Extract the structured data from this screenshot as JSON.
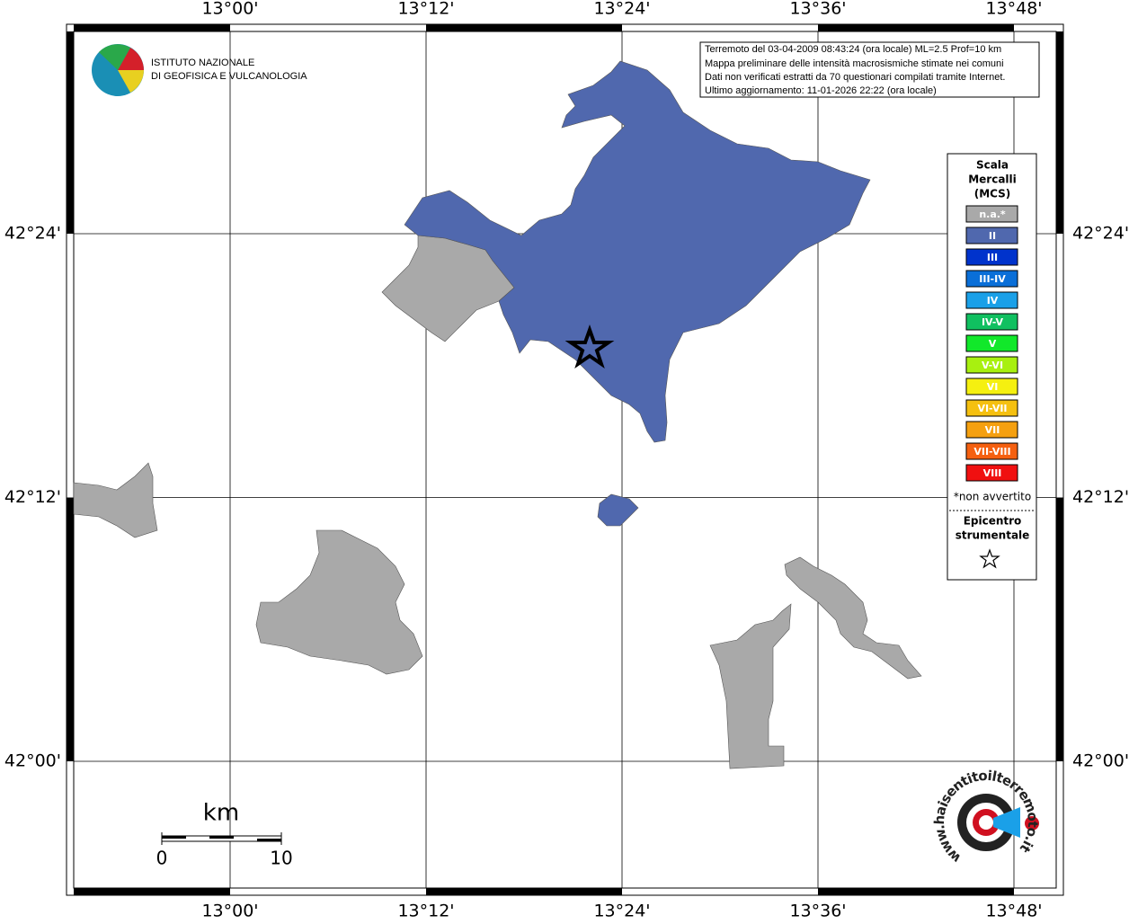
{
  "logo": {
    "lines": [
      "ISTITUTO NAZIONALE",
      "DI GEOFISICA E VULCANOLOGIA"
    ]
  },
  "info": {
    "lines": [
      "Terremoto del 03-04-2009 08:43:24 (ora locale) ML=2.5 Prof=10 km",
      "Mappa preliminare delle intensità macrosismiche stimate nei comuni",
      "Dati non verificati estratti da 70 questionari compilati tramite Internet.",
      "Ultimo aggiornamento: 11-01-2026 22:22 (ora locale)"
    ]
  },
  "axes": {
    "lon_ticks": [
      "13°00'",
      "13°12'",
      "13°24'",
      "13°36'",
      "13°48'"
    ],
    "lat_ticks": [
      "42°24'",
      "42°12'",
      "42°00'"
    ]
  },
  "legend": {
    "title": [
      "Scala",
      "Mercalli",
      "(MCS)"
    ],
    "items": [
      {
        "label": "n.a.*",
        "color": "#a9a9a9"
      },
      {
        "label": "II",
        "color": "#5068ae"
      },
      {
        "label": "III",
        "color": "#0033cc"
      },
      {
        "label": "III-IV",
        "color": "#0a6fd8"
      },
      {
        "label": "IV",
        "color": "#1aa0e8"
      },
      {
        "label": "IV-V",
        "color": "#10c060"
      },
      {
        "label": "V",
        "color": "#11e82a"
      },
      {
        "label": "V-VI",
        "color": "#a8f010"
      },
      {
        "label": "VI",
        "color": "#f5f010"
      },
      {
        "label": "VI-VII",
        "color": "#f5c010"
      },
      {
        "label": "VII",
        "color": "#f5a010"
      },
      {
        "label": "VII-VIII",
        "color": "#f56010"
      },
      {
        "label": "VIII",
        "color": "#f01010"
      }
    ],
    "note": "*non avvertito",
    "epicenter": [
      "Epicentro",
      "strumentale"
    ]
  },
  "scale_bar": {
    "unit": "km",
    "labels": [
      "0",
      "10"
    ]
  },
  "footer_logo": "www.haisentitoilterremoto.it"
}
